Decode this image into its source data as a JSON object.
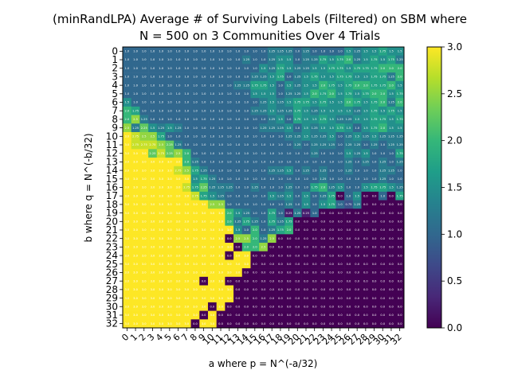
{
  "chart_data": {
    "type": "heatmap",
    "title_lines": [
      "(minRandLPA) Average # of Surviving Labels (Filtered) on SBM where",
      "N = 500 on 3 Communities Over 4 Trials"
    ],
    "xlabel": "a where p = N^(-a/32)",
    "ylabel": "b where q = N^(-b/32)",
    "x_ticks": [
      "0",
      "1",
      "2",
      "3",
      "4",
      "5",
      "6",
      "7",
      "8",
      "9",
      "10",
      "11",
      "12",
      "13",
      "14",
      "15",
      "16",
      "17",
      "18",
      "19",
      "20",
      "21",
      "22",
      "23",
      "24",
      "25",
      "26",
      "27",
      "28",
      "29",
      "30",
      "31",
      "32"
    ],
    "y_ticks": [
      "0",
      "1",
      "2",
      "3",
      "4",
      "5",
      "6",
      "7",
      "8",
      "9",
      "10",
      "11",
      "12",
      "13",
      "14",
      "15",
      "16",
      "17",
      "18",
      "19",
      "20",
      "21",
      "22",
      "23",
      "24",
      "25",
      "26",
      "27",
      "28",
      "29",
      "30",
      "31",
      "32"
    ],
    "colorbar": {
      "min": 0.0,
      "max": 3.0,
      "ticks": [
        "0.0",
        "0.5",
        "1.0",
        "1.5",
        "2.0",
        "2.5",
        "3.0"
      ]
    },
    "colormap": [
      "#440154",
      "#482878",
      "#3e4989",
      "#31688e",
      "#26828e",
      "#1f9e89",
      "#35b779",
      "#6ece58",
      "#b5de2b",
      "#fde725"
    ],
    "values": [
      [
        1,
        1,
        1,
        1,
        1,
        1,
        1,
        1,
        1,
        1,
        1,
        1,
        1,
        1,
        1,
        1,
        1,
        1.25,
        1.25,
        1.25,
        1,
        1.25,
        1,
        1,
        1,
        1,
        1.5,
        1.25,
        1.5,
        1.5,
        1.75,
        1.5,
        1.5
      ],
      [
        1,
        1,
        1,
        1,
        1,
        1,
        1,
        1,
        1,
        1,
        1,
        1,
        1,
        1,
        1.25,
        1,
        1,
        1.25,
        1.5,
        1.5,
        1,
        1.25,
        1.25,
        1.75,
        1.5,
        1.75,
        2,
        1.25,
        1.5,
        1.75,
        1.5,
        1.75,
        1.25
      ],
      [
        1,
        1,
        1,
        1,
        1,
        1,
        1,
        1,
        1,
        1,
        1,
        1,
        1,
        1,
        1,
        1,
        1.5,
        1.25,
        1.75,
        1.5,
        1.25,
        1.25,
        1.5,
        1.5,
        1.75,
        1.75,
        1.5,
        1.75,
        1.75,
        1.75,
        2,
        2,
        2
      ],
      [
        1,
        1,
        1,
        1,
        1,
        1,
        1,
        1,
        1,
        1,
        1,
        1,
        1,
        1,
        1,
        1.25,
        1.25,
        1.5,
        1.75,
        1,
        1.25,
        1.5,
        1.75,
        1.5,
        1.5,
        1.75,
        1.75,
        1.5,
        1.5,
        1.75,
        1.75,
        1.25,
        2
      ],
      [
        1,
        1,
        1,
        1,
        1,
        1,
        1,
        1,
        1,
        1,
        1,
        1,
        1,
        1.25,
        1.25,
        1.75,
        1.75,
        1.5,
        1,
        1.5,
        1.25,
        1.5,
        1.5,
        2,
        1.75,
        1.5,
        1.75,
        2,
        2,
        1.75,
        1.75,
        2,
        1.5
      ],
      [
        1,
        1,
        1,
        1,
        1,
        1,
        1,
        1,
        1,
        1,
        1,
        1,
        1,
        1,
        1,
        1.5,
        1.5,
        1.5,
        1,
        1.25,
        1.25,
        1.5,
        2,
        1.75,
        2,
        1.5,
        1.75,
        1.5,
        1.75,
        2,
        2,
        1.5,
        1.75
      ],
      [
        1.5,
        1,
        1,
        1,
        1,
        1,
        1,
        1,
        1,
        1,
        1,
        1,
        1,
        1,
        1,
        1,
        1.25,
        1.5,
        1.25,
        1.5,
        1.75,
        1.75,
        1.5,
        1.75,
        1.5,
        1.5,
        2,
        1.75,
        1.5,
        1.75,
        2,
        1.25,
        2
      ],
      [
        2,
        1.75,
        1,
        1,
        1,
        1,
        1,
        1,
        1,
        1,
        1,
        1,
        1,
        1,
        1,
        1.25,
        1.25,
        1.5,
        1.25,
        1.25,
        1.75,
        1.5,
        1.25,
        1.5,
        1.5,
        1.5,
        1.5,
        1.25,
        1.5,
        1.75,
        1.5,
        1.75,
        1.5
      ],
      [
        2,
        2.5,
        1.25,
        1,
        1,
        1,
        1,
        1,
        1,
        1,
        1,
        1,
        1,
        1,
        1,
        1,
        1,
        1.25,
        1.5,
        1,
        1.75,
        1.5,
        1.5,
        1.75,
        1.5,
        1.25,
        1.25,
        1.5,
        1.5,
        1.75,
        1.75,
        1.5,
        1.75
      ],
      [
        2.5,
        1.25,
        2.25,
        1.5,
        1.25,
        1.5,
        1.25,
        1,
        1,
        1,
        1,
        1,
        1,
        1,
        1,
        1,
        1.25,
        1.25,
        1.25,
        1.5,
        1,
        1.5,
        1.25,
        1.5,
        1.5,
        1.75,
        1.5,
        1,
        1.5,
        1.75,
        2,
        1.5,
        1.5
      ],
      [
        3,
        2.75,
        2.5,
        2.5,
        1.75,
        1,
        1,
        1,
        1,
        1,
        1,
        1,
        1,
        1,
        1,
        1,
        1,
        1,
        1,
        1.25,
        1.25,
        1.5,
        1.25,
        1.25,
        1.5,
        1,
        1.25,
        1.5,
        1.25,
        1.5,
        1.25,
        1.25,
        1.25
      ],
      [
        3,
        2.75,
        2.75,
        2.75,
        2.5,
        2.25,
        1.25,
        1,
        1,
        1,
        1,
        1,
        1,
        1,
        1,
        1,
        1,
        1,
        1,
        1,
        1.25,
        1,
        1.25,
        1.25,
        1.25,
        1,
        1.25,
        1.25,
        1,
        1.25,
        1,
        1.25,
        1.25
      ],
      [
        3,
        3,
        3,
        2.25,
        2.75,
        2.25,
        2.5,
        2,
        1,
        1,
        1,
        1,
        1,
        1,
        1,
        1,
        1,
        1,
        1,
        1,
        1,
        1,
        1.25,
        1,
        1,
        1,
        1.5,
        1.25,
        1.5,
        1,
        1,
        1,
        1.75
      ],
      [
        3,
        3,
        3,
        3,
        3,
        3,
        3,
        2,
        1.25,
        1,
        1,
        1,
        1,
        1,
        1,
        1,
        1,
        1,
        1,
        1,
        1,
        1,
        1,
        1,
        1,
        1,
        1.25,
        1,
        1.25,
        1,
        1.25,
        1,
        1.25
      ],
      [
        3,
        3,
        3,
        3,
        3,
        3,
        2.75,
        2.5,
        1.75,
        1.25,
        1,
        1,
        1,
        1,
        1,
        1,
        1,
        1.25,
        1.25,
        1.5,
        1,
        1.25,
        1,
        1.25,
        1,
        1,
        1.25,
        1,
        1,
        1,
        1.25,
        1.25,
        1
      ],
      [
        3,
        3,
        3,
        3,
        3,
        3,
        3,
        3,
        1.5,
        1.75,
        1.25,
        1,
        1,
        1,
        1,
        1,
        1,
        1,
        1,
        1,
        1,
        1,
        1,
        1.25,
        1,
        1,
        1,
        1,
        1,
        1,
        1.25,
        1,
        1
      ],
      [
        3,
        3,
        3,
        3,
        3,
        3,
        3,
        2.75,
        1.75,
        2.25,
        1.25,
        1.25,
        1.25,
        1,
        1,
        1.25,
        1,
        1,
        1,
        1.25,
        1,
        1,
        1.75,
        2,
        1.25,
        1.5,
        1,
        1,
        1.5,
        1.75,
        1.75,
        1.5,
        1.25
      ],
      [
        3,
        3,
        3,
        3,
        3,
        3,
        3,
        3,
        2.75,
        1.75,
        1.5,
        1.25,
        1,
        1,
        1,
        1,
        1,
        1.5,
        1.25,
        1.5,
        1,
        1.5,
        1,
        1.25,
        1.75,
        0,
        1,
        1.5,
        0,
        0,
        1,
        0,
        1.75
      ],
      [
        3,
        3,
        3,
        3,
        3,
        3,
        3,
        3,
        3,
        3,
        2.5,
        2.5,
        1,
        1,
        1,
        1,
        1,
        1,
        1,
        1.25,
        1,
        1.5,
        1,
        1.5,
        1.75,
        1,
        0.75,
        1.25,
        0,
        0,
        0,
        0,
        0
      ],
      [
        3,
        3,
        3,
        3,
        3,
        3,
        3,
        3,
        3,
        3,
        3,
        3,
        2,
        1.5,
        1.25,
        1,
        1,
        1.75,
        1,
        0.25,
        1.25,
        0.25,
        1,
        0,
        0,
        0,
        0,
        0,
        0,
        0,
        0,
        0,
        0
      ],
      [
        3,
        3,
        3,
        3,
        3,
        3,
        3,
        3,
        3,
        3,
        3,
        3,
        2,
        1.25,
        1.75,
        1.25,
        1,
        1.75,
        1.25,
        1.75,
        0,
        0,
        0,
        0,
        0,
        0,
        0,
        0,
        0,
        0,
        0,
        0,
        0
      ],
      [
        3,
        3,
        3,
        3,
        3,
        3,
        3,
        3,
        3,
        3,
        3,
        3,
        3,
        1.5,
        1,
        2,
        1,
        1.25,
        1.75,
        2,
        0,
        0,
        0,
        0,
        0,
        0,
        0,
        0,
        0,
        0,
        0,
        0,
        0
      ],
      [
        3,
        3,
        3,
        3,
        3,
        3,
        3,
        3,
        3,
        3,
        3,
        3,
        0,
        2.5,
        2.5,
        2,
        1.25,
        2.5,
        0,
        0,
        0,
        0,
        0,
        0,
        0,
        0,
        0,
        0,
        0,
        0,
        0,
        0,
        0
      ],
      [
        3,
        3,
        3,
        3,
        3,
        3,
        3,
        3,
        3,
        3,
        3,
        3,
        3,
        0,
        2,
        2,
        2.5,
        0,
        0,
        0,
        0,
        0,
        0,
        0,
        0,
        0,
        0,
        0,
        0,
        0,
        0,
        0,
        0
      ],
      [
        3,
        3,
        3,
        3,
        3,
        3,
        3,
        3,
        3,
        3,
        3,
        3,
        0,
        3,
        3,
        0,
        0,
        0,
        0,
        0,
        0,
        0,
        0,
        0,
        0,
        0,
        0,
        0,
        0,
        0,
        0,
        0,
        0
      ],
      [
        3,
        3,
        3,
        3,
        3,
        3,
        3,
        3,
        3,
        3,
        3,
        3,
        3,
        3,
        3,
        0,
        0,
        0,
        0,
        0,
        0,
        0,
        0,
        0,
        0,
        0,
        0,
        0,
        0,
        0,
        0,
        0,
        0
      ],
      [
        3,
        3,
        3,
        3,
        3,
        3,
        3,
        3,
        3,
        3,
        3,
        3,
        3,
        3,
        0,
        0,
        0,
        0,
        0,
        0,
        0,
        0,
        0,
        0,
        0,
        0,
        0,
        0,
        0,
        0,
        0,
        0,
        0
      ],
      [
        3,
        3,
        3,
        3,
        3,
        3,
        3,
        3,
        3,
        0,
        3,
        3,
        0,
        0,
        0,
        0,
        0,
        0,
        0,
        0,
        0,
        0,
        0,
        0,
        0,
        0,
        0,
        0,
        0,
        0,
        0,
        0,
        0
      ],
      [
        3,
        3,
        3,
        3,
        3,
        3,
        3,
        3,
        3,
        3,
        3,
        3,
        3,
        0,
        0,
        0,
        0,
        0,
        0,
        0,
        0,
        0,
        0,
        0,
        0,
        0,
        0,
        0,
        0,
        0,
        0,
        0,
        0
      ],
      [
        3,
        3,
        3,
        3,
        3,
        3,
        3,
        3,
        3,
        3,
        3,
        3,
        3,
        0,
        0,
        0,
        0,
        0,
        0,
        0,
        0,
        0,
        0,
        0,
        0,
        0,
        0,
        0,
        0,
        0,
        0,
        0,
        0
      ],
      [
        3,
        3,
        3,
        3,
        3,
        3,
        3,
        3,
        3,
        3,
        0,
        3,
        0,
        0,
        0,
        0,
        0,
        0,
        0,
        0,
        0,
        0,
        0,
        0,
        0,
        0,
        0,
        0,
        0,
        0,
        0,
        0,
        0
      ],
      [
        3,
        3,
        3,
        3,
        3,
        3,
        3,
        3,
        3,
        0,
        3,
        0,
        0,
        0,
        0,
        0,
        0,
        0,
        0,
        0,
        0,
        0,
        0,
        0,
        0,
        0,
        0,
        0,
        0,
        0,
        0,
        0,
        0
      ],
      [
        3,
        3,
        3,
        3,
        3,
        3,
        3,
        3,
        0,
        3,
        3,
        0,
        0,
        0,
        0,
        0,
        0,
        0,
        0,
        0,
        0,
        0,
        0,
        0,
        0,
        0,
        0,
        0,
        0,
        0,
        0,
        0,
        0
      ]
    ]
  }
}
